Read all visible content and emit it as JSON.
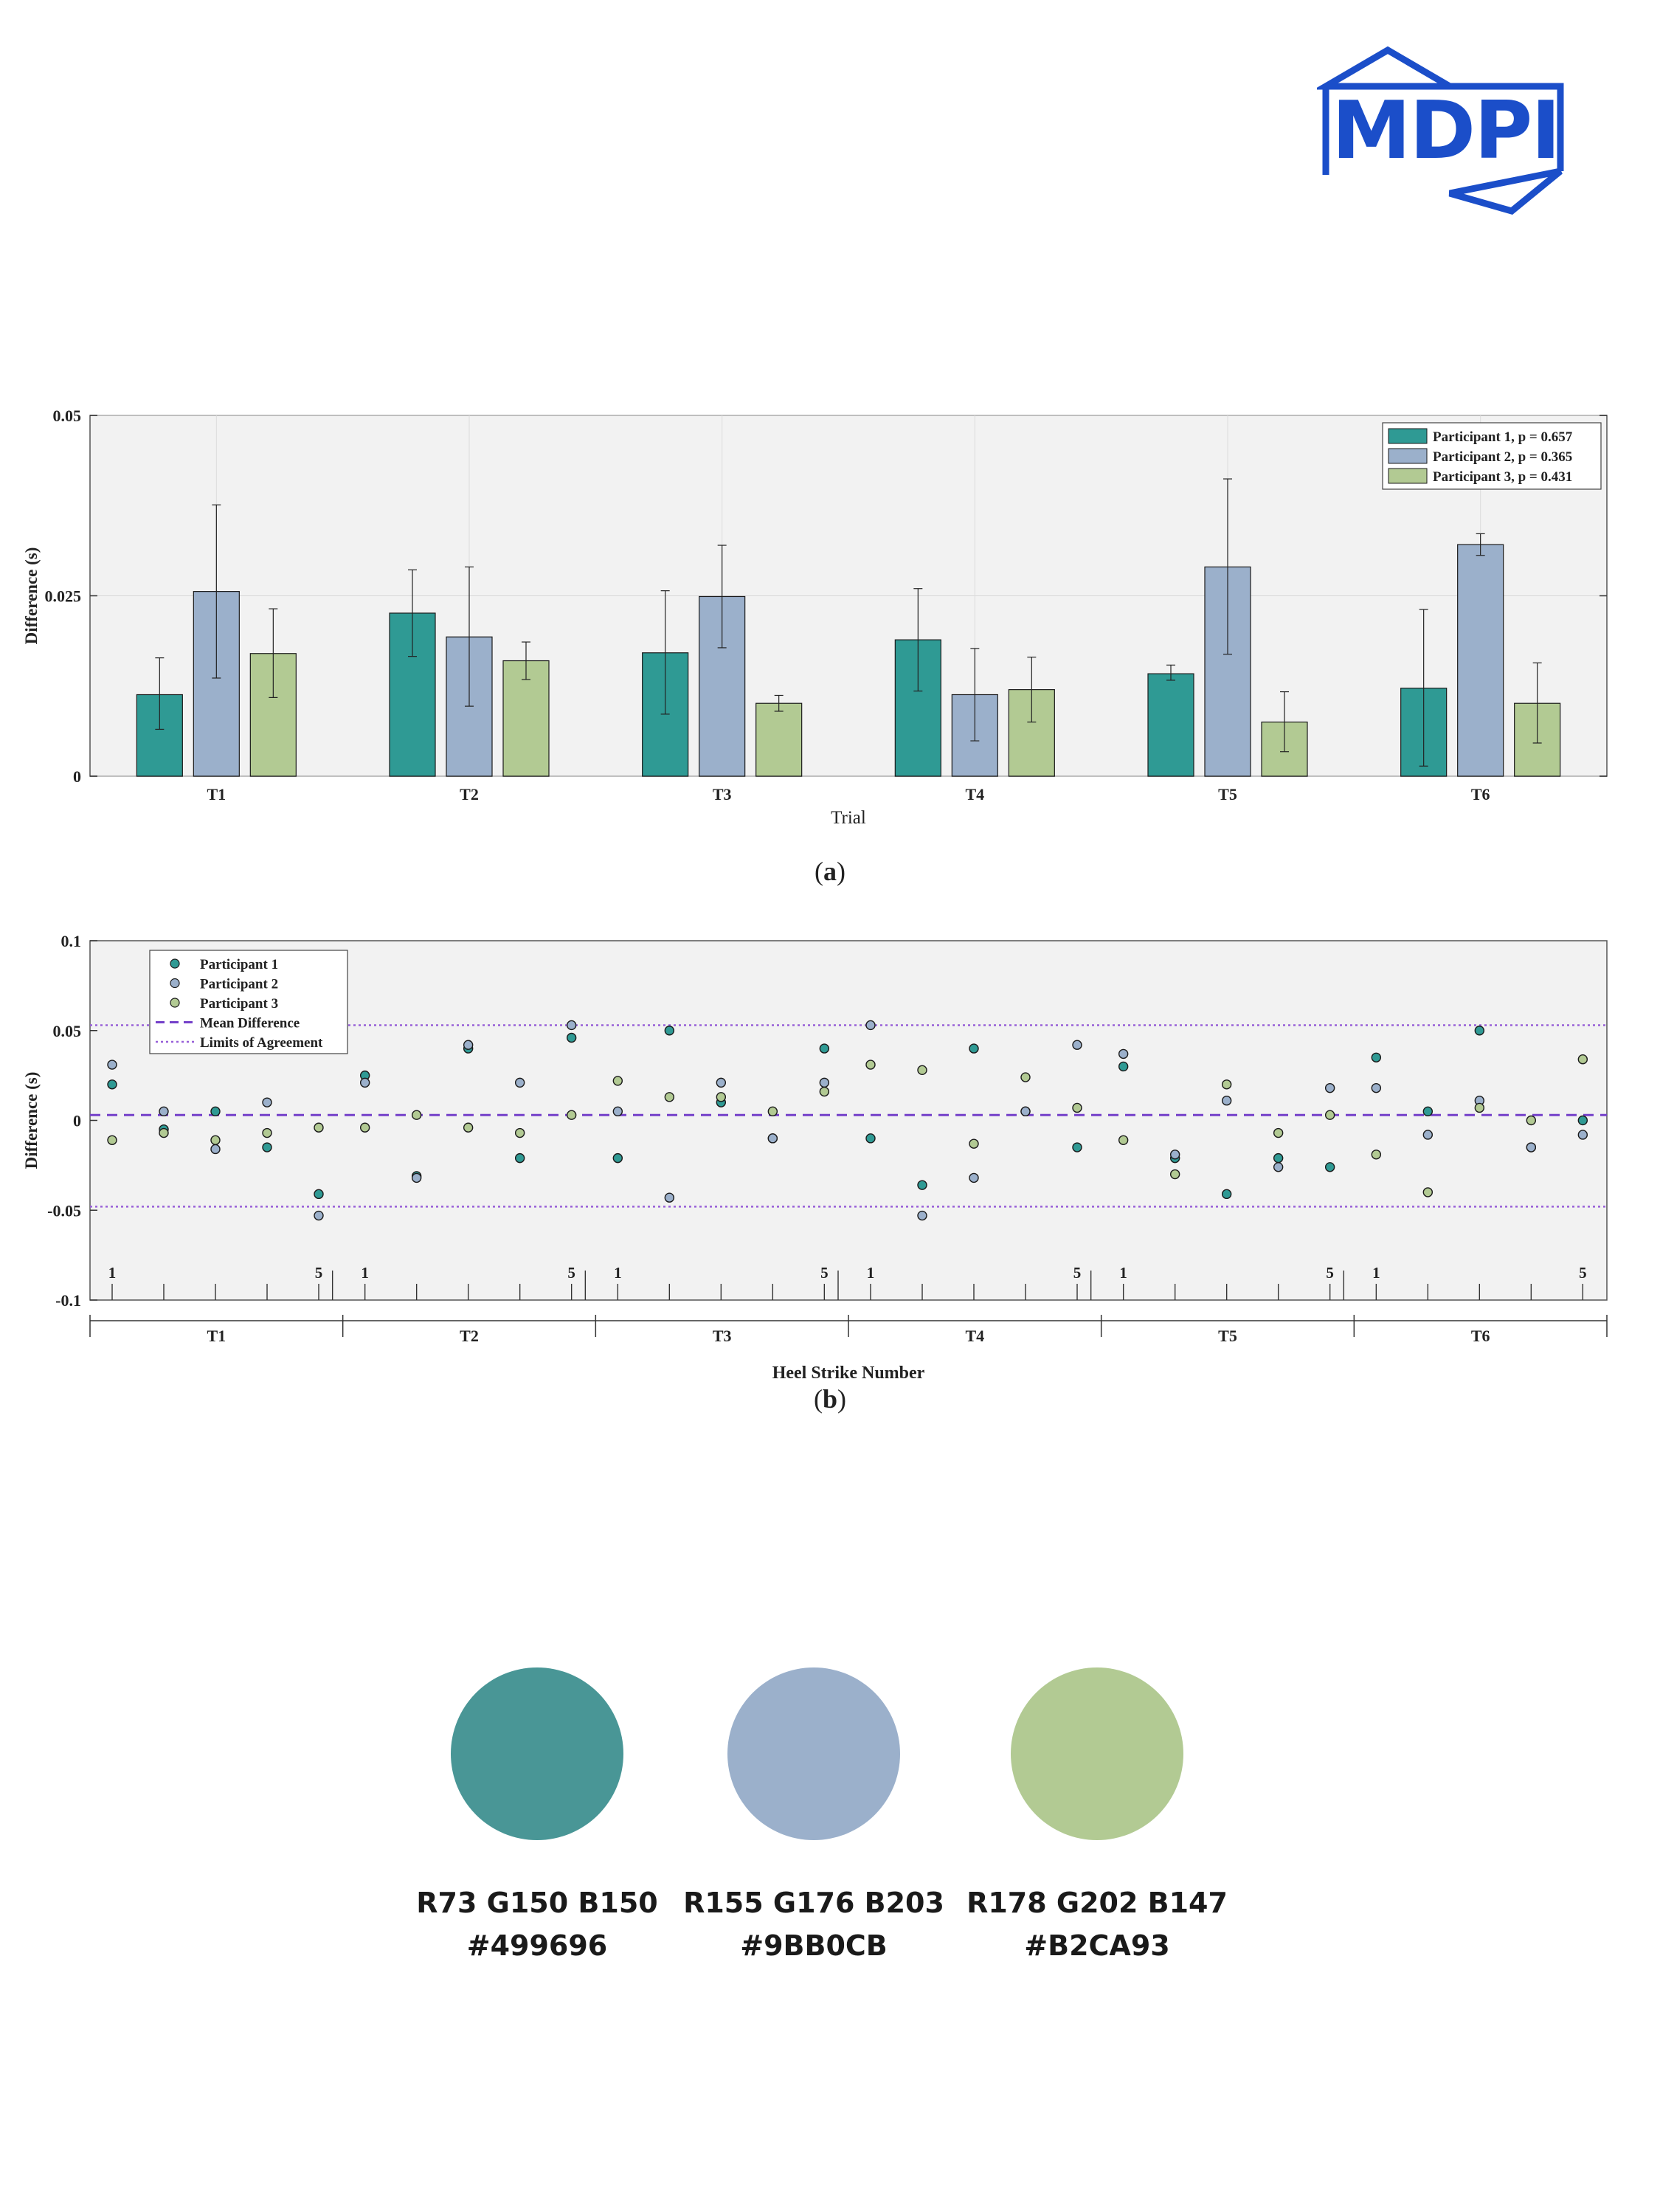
{
  "logo": {
    "text": "MDPI",
    "color": "#1b4ec9"
  },
  "captions": {
    "a": "a",
    "b": "b"
  },
  "colors": {
    "p1": "#2f9a94",
    "p2": "#9bb0cb",
    "p3": "#b2ca93",
    "mean": "#7440c9",
    "loa": "#9860d8",
    "panel_bg": "#f2f2f2"
  },
  "chart_data": [
    {
      "type": "bar",
      "categories": [
        "T1",
        "T2",
        "T3",
        "T4",
        "T5",
        "T6"
      ],
      "xlabel": "Trial",
      "ylabel": "Difference (s)",
      "ylim": [
        0,
        0.05
      ],
      "yticks": [
        "0",
        "0.025",
        "0.05"
      ],
      "ytick_values": [
        0,
        0.025,
        0.05
      ],
      "legend_placement": "top-right",
      "grid": true,
      "series": [
        {
          "name": "Participant 1, p = 0.657",
          "values": [
            0.0113,
            0.0226,
            0.0171,
            0.0189,
            0.0142,
            0.0122
          ],
          "err_low": [
            0.0065,
            0.0166,
            0.0086,
            0.0118,
            0.0133,
            0.0014
          ],
          "err_high": [
            0.0164,
            0.0286,
            0.0257,
            0.026,
            0.0154,
            0.0231
          ]
        },
        {
          "name": "Participant 2, p = 0.365",
          "values": [
            0.0256,
            0.0193,
            0.0249,
            0.0113,
            0.029,
            0.0321
          ],
          "err_low": [
            0.0136,
            0.0097,
            0.0178,
            0.0049,
            0.0169,
            0.0306
          ],
          "err_high": [
            0.0376,
            0.029,
            0.032,
            0.0177,
            0.0412,
            0.0336
          ]
        },
        {
          "name": "Participant 3, p = 0.431",
          "values": [
            0.017,
            0.016,
            0.0101,
            0.012,
            0.0075,
            0.0101
          ],
          "err_low": [
            0.0109,
            0.0134,
            0.009,
            0.0075,
            0.0034,
            0.0046
          ],
          "err_high": [
            0.0232,
            0.0186,
            0.0112,
            0.0165,
            0.0117,
            0.0157
          ]
        }
      ]
    },
    {
      "type": "scatter",
      "xlabel": "Heel Strike Number",
      "ylabel": "Difference (s)",
      "ylim": [
        -0.1,
        0.1
      ],
      "yticks": [
        "-0.1",
        "-0.05",
        "0",
        "0.05",
        "0.1"
      ],
      "ytick_values": [
        -0.1,
        -0.05,
        0,
        0.05,
        0.1
      ],
      "legend_placement": "top-left",
      "groups": [
        "T1",
        "T2",
        "T3",
        "T4",
        "T5",
        "T6"
      ],
      "strike_labels": [
        "1",
        "5"
      ],
      "mean_difference": 0.003,
      "limits_of_agreement": [
        -0.048,
        0.053
      ],
      "legend": [
        "Participant 1",
        "Participant 2",
        "Participant 3",
        "Mean Difference",
        "Limits of Agreement"
      ],
      "series": [
        {
          "name": "Participant 1",
          "values": [
            0.02,
            -0.005,
            0.005,
            -0.015,
            -0.041,
            0.025,
            -0.031,
            0.04,
            -0.021,
            0.046,
            -0.021,
            0.05,
            0.01,
            -0.01,
            0.04,
            -0.01,
            -0.036,
            0.04,
            0.005,
            -0.015,
            0.03,
            -0.021,
            -0.041,
            -0.021,
            -0.026,
            0.035,
            0.005,
            0.05,
            -0.015,
            0.0
          ]
        },
        {
          "name": "Participant 2",
          "values": [
            0.031,
            0.005,
            -0.016,
            0.01,
            -0.053,
            0.021,
            -0.032,
            0.042,
            0.021,
            0.053,
            0.005,
            -0.043,
            0.021,
            -0.01,
            0.021,
            0.053,
            -0.053,
            -0.032,
            0.005,
            0.042,
            0.037,
            -0.019,
            0.011,
            -0.026,
            0.018,
            0.018,
            -0.008,
            0.011,
            -0.015,
            -0.008
          ]
        },
        {
          "name": "Participant 3",
          "values": [
            -0.011,
            -0.007,
            -0.011,
            -0.007,
            -0.004,
            -0.004,
            0.003,
            -0.004,
            -0.007,
            0.003,
            0.022,
            0.013,
            0.013,
            0.005,
            0.016,
            0.031,
            0.028,
            -0.013,
            0.024,
            0.007,
            -0.011,
            -0.03,
            0.02,
            -0.007,
            0.003,
            -0.019,
            -0.04,
            0.007,
            0.0,
            0.034
          ]
        }
      ]
    }
  ],
  "swatches": [
    {
      "color": "#499696",
      "rgb": "R73 G150 B150",
      "hex": "#499696"
    },
    {
      "color": "#9BB0CB",
      "rgb": "R155 G176 B203",
      "hex": "#9BB0CB"
    },
    {
      "color": "#B2CA93",
      "rgb": "R178 G202 B147",
      "hex": "#B2CA93"
    }
  ]
}
